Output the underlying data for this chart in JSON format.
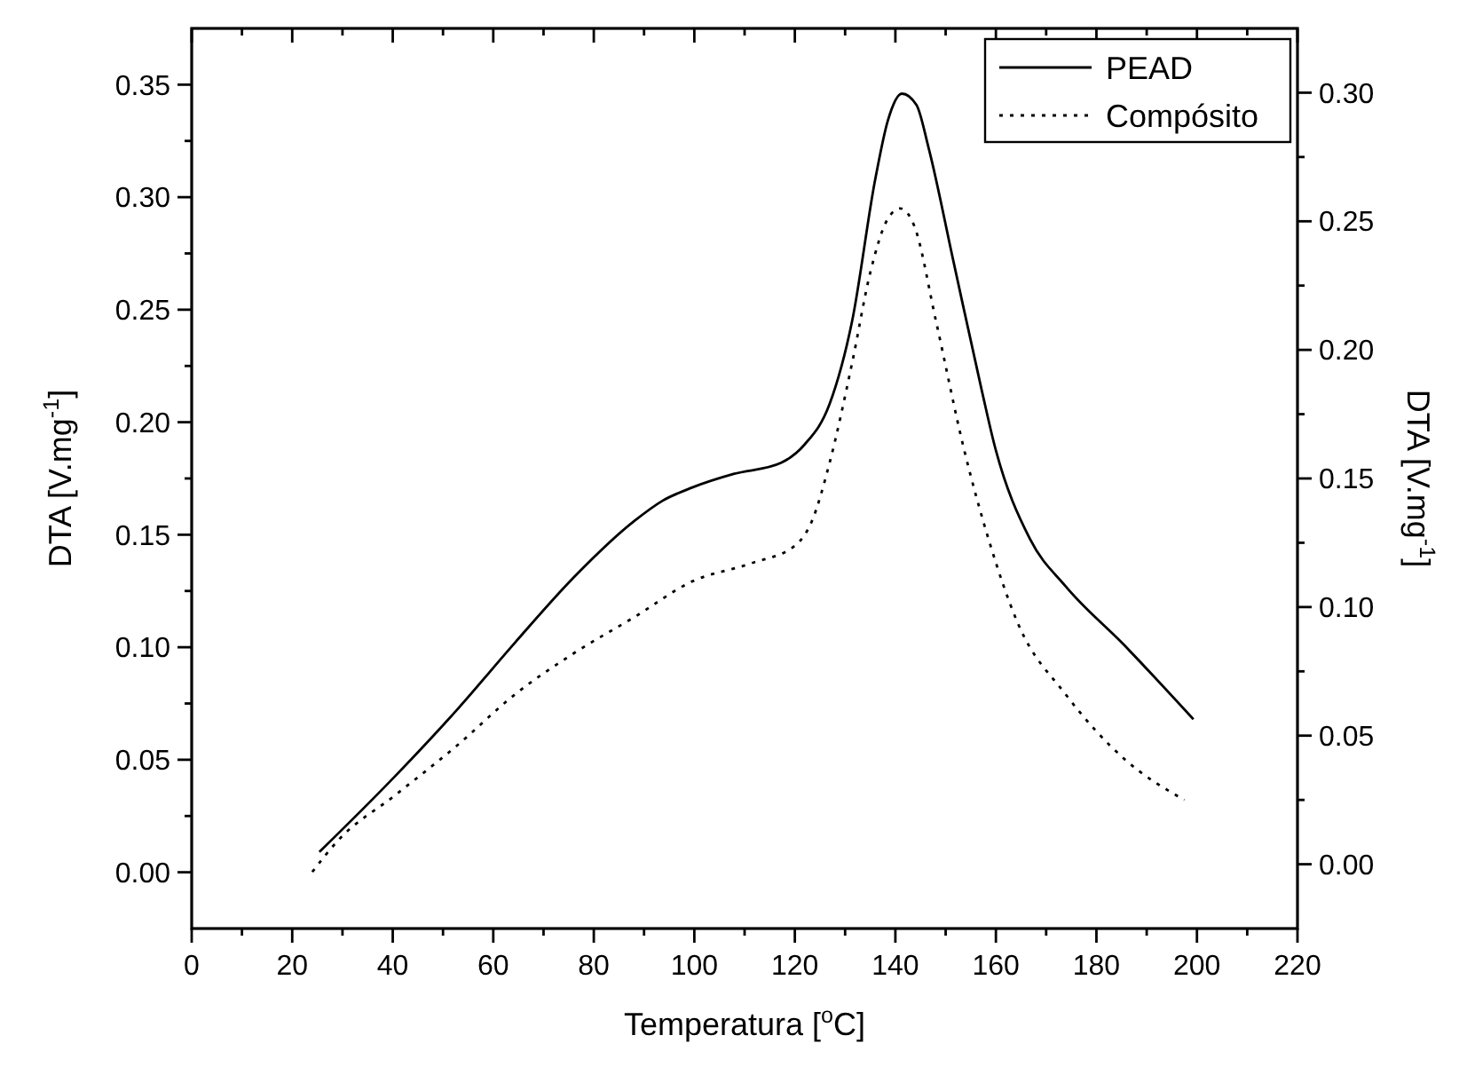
{
  "chart_data": {
    "type": "line",
    "xlabel": "Temperatura [$^{o}$C]",
    "ylabel": "DTA [V.mg$^{-1}$]",
    "y2label": "DTA [V.mg$^{-1}$]",
    "xlim": [
      0,
      220
    ],
    "xticks": [
      0,
      {
        "value": 10,
        "label": null
      },
      20,
      {
        "value": 30,
        "label": null
      },
      40,
      {
        "value": 50,
        "label": null
      },
      60,
      {
        "value": 70,
        "label": null
      },
      80,
      {
        "value": 90,
        "label": null
      },
      100,
      {
        "value": 110,
        "label": null
      },
      120,
      {
        "value": 130,
        "label": null
      },
      140,
      {
        "value": 150,
        "label": null
      },
      160,
      {
        "value": 170,
        "label": null
      },
      180,
      {
        "value": 190,
        "label": null
      },
      200,
      {
        "value": 210,
        "label": null
      },
      220
    ],
    "ylim": [
      -0.025,
      0.375
    ],
    "yticks": [
      {
        "value": 0,
        "label": "0.00"
      },
      {
        "value": 0.025,
        "label": null
      },
      {
        "value": 0.05,
        "label": "0.05"
      },
      {
        "value": 0.075,
        "label": null
      },
      {
        "value": 0.1,
        "label": "0.10"
      },
      {
        "value": 0.125,
        "label": null
      },
      {
        "value": 0.15,
        "label": "0.15"
      },
      {
        "value": 0.175,
        "label": null
      },
      {
        "value": 0.2,
        "label": "0.20"
      },
      {
        "value": 0.225,
        "label": null
      },
      {
        "value": 0.25,
        "label": "0.25"
      },
      {
        "value": 0.275,
        "label": null
      },
      {
        "value": 0.3,
        "label": "0.30"
      },
      {
        "value": 0.325,
        "label": null
      },
      {
        "value": 0.35,
        "label": "0.35"
      }
    ],
    "y2lim": [
      -0.025,
      0.325
    ],
    "y2ticks": [
      {
        "value": 0,
        "label": "0.00"
      },
      {
        "value": 0.025,
        "label": null
      },
      {
        "value": 0.05,
        "label": "0.05"
      },
      {
        "value": 0.075,
        "label": null
      },
      {
        "value": 0.1,
        "label": "0.10"
      },
      {
        "value": 0.125,
        "label": null
      },
      {
        "value": 0.15,
        "label": "0.15"
      },
      {
        "value": 0.175,
        "label": null
      },
      {
        "value": 0.2,
        "label": "0.20"
      },
      {
        "value": 0.225,
        "label": null
      },
      {
        "value": 0.25,
        "label": "0.25"
      },
      {
        "value": 0.275,
        "label": null
      },
      {
        "value": 0.3,
        "label": "0.30"
      }
    ],
    "grid": false,
    "legend": "top right",
    "marker": "none",
    "series": [
      {
        "name": "PEAD",
        "color": "#000000",
        "line_style": "solid",
        "x": [
          25.4,
          40.6,
          52.7,
          64.3,
          76.0,
          88.0,
          93.6,
          99.6,
          107.8,
          117.3,
          121.9,
          126.9,
          131.4,
          136.0,
          138.5,
          141.3,
          144.2,
          146.6,
          151.6,
          157.2,
          159.7,
          166.8,
          173.9,
          185.5,
          199.3
        ],
        "values": [
          0.009,
          0.043,
          0.072,
          0.102,
          0.131,
          0.156,
          0.165,
          0.171,
          0.177,
          0.182,
          0.19,
          0.208,
          0.245,
          0.308,
          0.334,
          0.346,
          0.341,
          0.322,
          0.271,
          0.214,
          0.19,
          0.148,
          0.127,
          0.101,
          0.068
        ]
      },
      {
        "name": "Compósito",
        "color": "#000000",
        "line_style": "dotted",
        "axis": "y2",
        "x": [
          24.0,
          29.0,
          40.6,
          52.7,
          64.3,
          76.0,
          88.0,
          99.6,
          111.3,
          120.1,
          123.3,
          126.9,
          131.4,
          135.0,
          138.5,
          141.0,
          143.8,
          148.1,
          153.7,
          158.6,
          164.3,
          173.9,
          185.5,
          197.5
        ],
        "values": [
          -0.003,
          0.009,
          0.027,
          0.046,
          0.066,
          0.082,
          0.096,
          0.11,
          0.117,
          0.124,
          0.133,
          0.156,
          0.195,
          0.23,
          0.251,
          0.255,
          0.248,
          0.211,
          0.161,
          0.126,
          0.094,
          0.066,
          0.041,
          0.025
        ]
      }
    ]
  }
}
